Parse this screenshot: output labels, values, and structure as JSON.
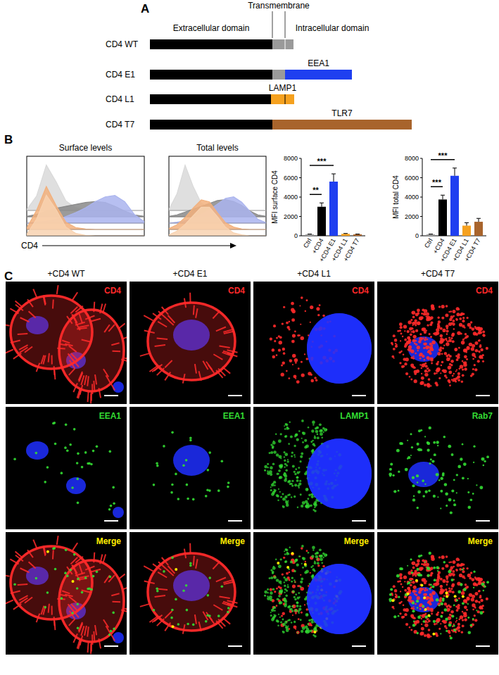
{
  "panel_labels": [
    "A",
    "B",
    "C"
  ],
  "diagram": {
    "headers": {
      "transmembrane": "Transmembrane",
      "extracellular": "Extracellular domain",
      "intracellular": "Intracellular domain"
    },
    "constructs": [
      {
        "name": "CD4 WT",
        "color": "#9a9a9a"
      },
      {
        "name": "CD4 E1",
        "tail_label": "EEA1",
        "color": "#1f3ff0"
      },
      {
        "name": "CD4 L1",
        "tail_label": "LAMP1",
        "color": "#f5a11f"
      },
      {
        "name": "CD4 T7",
        "tail_label": "TLR7",
        "color": "#a8642c"
      }
    ]
  },
  "chart_data": [
    {
      "type": "area",
      "title": "Surface levels",
      "x_label": "CD4",
      "x": [
        0,
        1,
        2,
        3,
        4,
        5,
        6,
        7,
        8,
        9,
        10,
        11,
        12
      ],
      "xlim": [
        0,
        12
      ],
      "ylim": [
        0,
        100
      ],
      "tick_labels": false,
      "series": [
        {
          "color": "#d9d9d9",
          "values": [
            2,
            30,
            95,
            60,
            20,
            6,
            2,
            0,
            0,
            0,
            0,
            0,
            0
          ]
        },
        {
          "color": "#8a8a8a",
          "values": [
            1,
            5,
            12,
            18,
            22,
            26,
            30,
            32,
            30,
            22,
            12,
            4,
            1
          ]
        },
        {
          "color": "#aab4ee",
          "values": [
            0,
            2,
            4,
            8,
            14,
            22,
            32,
            45,
            55,
            58,
            45,
            18,
            3
          ]
        },
        {
          "color": "#f2b07c",
          "values": [
            3,
            40,
            90,
            50,
            15,
            4,
            1,
            0,
            0,
            0,
            0,
            0,
            0
          ]
        },
        {
          "color": "#f8d2b0",
          "values": [
            3,
            35,
            85,
            55,
            18,
            5,
            1,
            0,
            0,
            0,
            0,
            0,
            0
          ]
        }
      ]
    },
    {
      "type": "area",
      "title": "Total levels",
      "x": [
        0,
        1,
        2,
        3,
        4,
        5,
        6,
        7,
        8,
        9,
        10,
        11,
        12
      ],
      "xlim": [
        0,
        12
      ],
      "ylim": [
        0,
        100
      ],
      "tick_labels": false,
      "series": [
        {
          "color": "#d9d9d9",
          "values": [
            2,
            35,
            95,
            50,
            15,
            4,
            1,
            0,
            0,
            0,
            0,
            0,
            0
          ]
        },
        {
          "color": "#8a8a8a",
          "values": [
            1,
            4,
            10,
            16,
            22,
            28,
            34,
            36,
            32,
            24,
            12,
            4,
            1
          ]
        },
        {
          "color": "#aab4ee",
          "values": [
            0,
            2,
            5,
            10,
            18,
            28,
            40,
            52,
            55,
            44,
            25,
            8,
            1
          ]
        },
        {
          "color": "#f2b07c",
          "values": [
            2,
            10,
            25,
            45,
            62,
            58,
            35,
            14,
            5,
            1,
            0,
            0,
            0
          ]
        },
        {
          "color": "#f8d2b0",
          "values": [
            2,
            10,
            24,
            42,
            60,
            60,
            40,
            18,
            6,
            2,
            0,
            0,
            0
          ]
        }
      ]
    },
    {
      "type": "bar",
      "y_label": "MFI surface CD4",
      "categories": [
        "Ctrl",
        "+CD4",
        "+CD4 E1",
        "+CD4 L1",
        "+CD4 T7"
      ],
      "values": [
        150,
        3000,
        5600,
        200,
        150
      ],
      "errors": [
        30,
        400,
        800,
        40,
        30
      ],
      "colors": [
        "#9a9a9a",
        "#000000",
        "#1f3ff0",
        "#f5a11f",
        "#a8642c"
      ],
      "ylim": [
        0,
        8000
      ],
      "yticks": [
        0,
        2000,
        4000,
        6000,
        8000
      ],
      "annotations": [
        {
          "text": "**",
          "from": 0,
          "to": 1
        },
        {
          "text": "***",
          "from": 0,
          "to": 2
        }
      ]
    },
    {
      "type": "bar",
      "y_label": "MFI total CD4",
      "categories": [
        "Ctrl",
        "+CD4",
        "+CD4 E1",
        "+CD4 L1",
        "+CD4 T7"
      ],
      "values": [
        150,
        3750,
        6200,
        1050,
        1450
      ],
      "errors": [
        30,
        450,
        800,
        300,
        350
      ],
      "colors": [
        "#9a9a9a",
        "#000000",
        "#1f3ff0",
        "#f5a11f",
        "#a8642c"
      ],
      "ylim": [
        0,
        8000
      ],
      "yticks": [
        0,
        2000,
        4000,
        6000,
        8000
      ],
      "annotations": [
        {
          "text": "***",
          "from": 0,
          "to": 1
        },
        {
          "text": "***",
          "from": 0,
          "to": 2
        }
      ]
    }
  ],
  "micrographs": {
    "columns": [
      {
        "title": "+CD4 WT",
        "stains": [
          {
            "label": "CD4",
            "color": "#ff2a2a"
          },
          {
            "label": "EEA1",
            "color": "#33dd33"
          },
          {
            "label": "Merge",
            "color": "#ffee00"
          }
        ]
      },
      {
        "title": "+CD4 E1",
        "stains": [
          {
            "label": "CD4",
            "color": "#ff2a2a"
          },
          {
            "label": "EEA1",
            "color": "#33dd33"
          },
          {
            "label": "Merge",
            "color": "#ffee00"
          }
        ]
      },
      {
        "title": "+CD4 L1",
        "stains": [
          {
            "label": "CD4",
            "color": "#ff2a2a"
          },
          {
            "label": "LAMP1",
            "color": "#33dd33"
          },
          {
            "label": "Merge",
            "color": "#ffee00"
          }
        ]
      },
      {
        "title": "+CD4 T7",
        "stains": [
          {
            "label": "CD4",
            "color": "#ff2a2a"
          },
          {
            "label": "Rab7",
            "color": "#33dd33"
          },
          {
            "label": "Merge",
            "color": "#ffee00"
          }
        ]
      }
    ]
  }
}
